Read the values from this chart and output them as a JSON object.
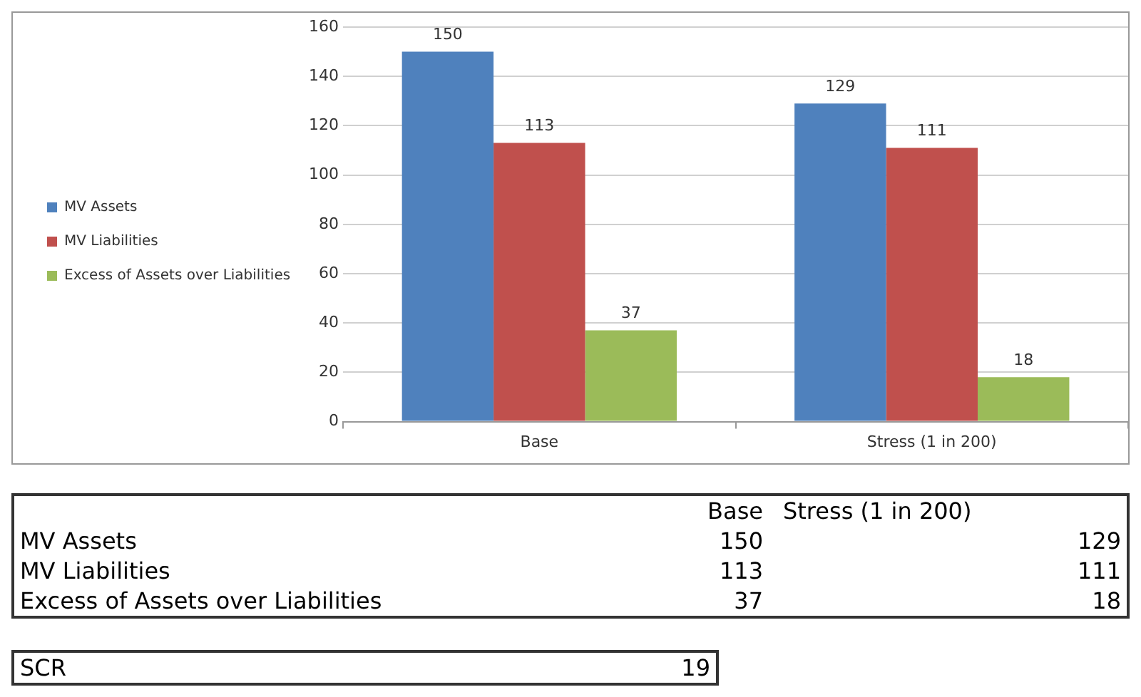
{
  "chart_data": [
    {
      "type": "bar",
      "categories": [
        "Base",
        "Stress (1 in 200)"
      ],
      "series": [
        {
          "name": "MV Assets",
          "color": "#4f81bd",
          "values": [
            150,
            129
          ]
        },
        {
          "name": "MV Liabilities",
          "color": "#c0504d",
          "values": [
            113,
            111
          ]
        },
        {
          "name": "Excess of Assets over Liabilities",
          "color": "#9bbb59",
          "values": [
            37,
            18
          ]
        }
      ],
      "ylim": [
        0,
        160
      ],
      "yticks": [
        0,
        20,
        40,
        60,
        80,
        100,
        120,
        140,
        160
      ],
      "grid": "y",
      "legend": "left",
      "data_labels": true
    },
    {
      "type": "other",
      "categories": [
        "Base",
        "Stress (1 in 200)"
      ],
      "series": [
        {
          "name": "MV Assets",
          "values": [
            150,
            129
          ]
        },
        {
          "name": "MV Liabilities",
          "values": [
            113,
            111
          ]
        },
        {
          "name": "Excess of Assets over Liabilities",
          "values": [
            37,
            18
          ]
        }
      ],
      "data_labels": true,
      "annotations": [
        "SCR",
        "19"
      ]
    }
  ]
}
